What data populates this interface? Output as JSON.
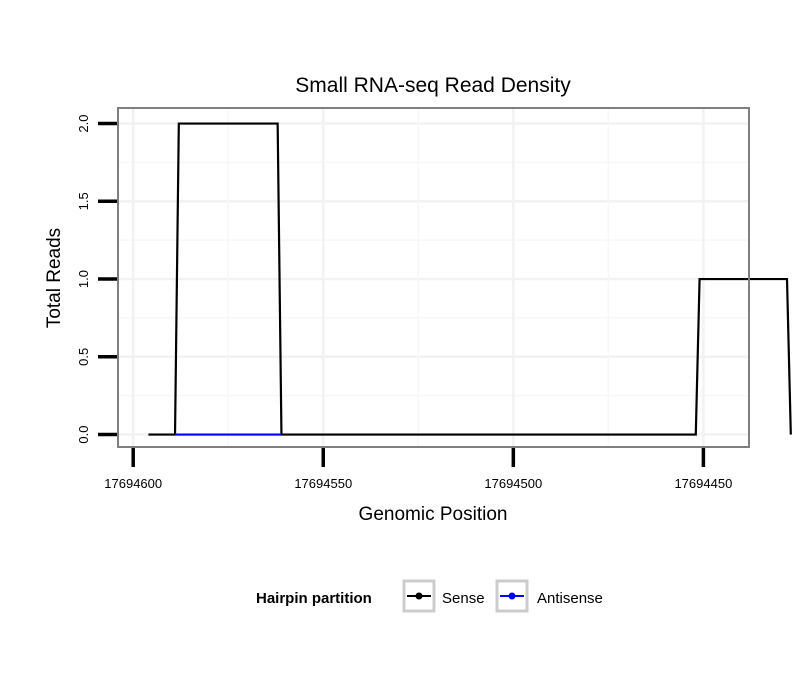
{
  "chart_data": {
    "type": "line",
    "title": "Small RNA-seq Read Density",
    "xlabel": "Genomic Position",
    "ylabel": "Total Reads",
    "xlim": [
      17694604,
      17694438
    ],
    "ylim": [
      -0.08,
      2.1
    ],
    "x_reversed": true,
    "x_ticks": [
      17694600,
      17694550,
      17694500,
      17694450
    ],
    "x_tick_labels": [
      "17694600",
      "17694550",
      "17694500",
      "17694450"
    ],
    "y_ticks": [
      0.0,
      0.5,
      1.0,
      1.5,
      2.0
    ],
    "y_tick_labels": [
      "0.0",
      "0.5",
      "1.0",
      "1.5",
      "2.0"
    ],
    "grid": true,
    "legend": {
      "title": "Hairpin partition",
      "position": "bottom"
    },
    "series": [
      {
        "name": "Sense",
        "color": "#000000",
        "points": [
          [
            17694596,
            0
          ],
          [
            17694589,
            0
          ],
          [
            17694588,
            2
          ],
          [
            17694562,
            2
          ],
          [
            17694561,
            0
          ],
          [
            17694452,
            0
          ],
          [
            17694451,
            1
          ],
          [
            17694428,
            1
          ],
          [
            17694427,
            0
          ]
        ]
      },
      {
        "name": "Antisense",
        "color": "#0000ff",
        "points": [
          [
            17694589,
            0
          ],
          [
            17694561,
            0
          ]
        ]
      }
    ]
  }
}
